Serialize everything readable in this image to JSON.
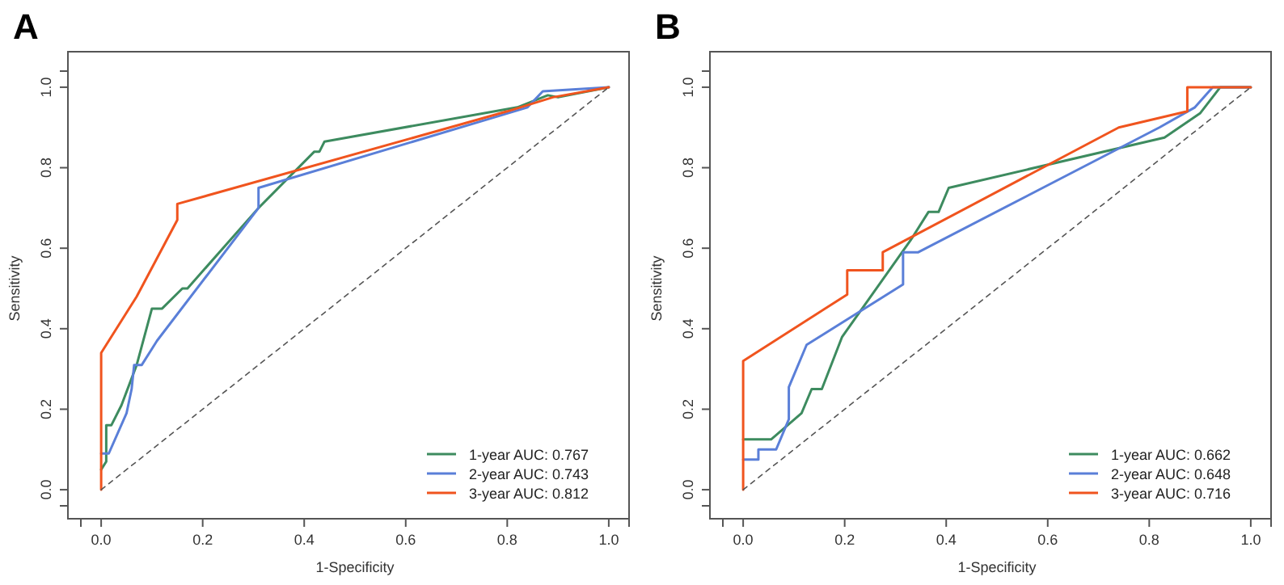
{
  "chart_data": [
    {
      "type": "line",
      "title": "A",
      "xlabel": "1-Specificity",
      "ylabel": "Sensitivity",
      "xlim": [
        -0.04,
        1.04
      ],
      "ylim": [
        -0.04,
        1.04
      ],
      "xticks": [
        {
          "value": 0,
          "label": "0.0"
        },
        {
          "value": 0.2,
          "label": "0.2"
        },
        {
          "value": 0.4,
          "label": "0.4"
        },
        {
          "value": 0.6,
          "label": "0.6"
        },
        {
          "value": 0.8,
          "label": "0.8"
        },
        {
          "value": 1,
          "label": "1.0"
        }
      ],
      "yticks": [
        {
          "value": 0,
          "label": "0.0"
        },
        {
          "value": 0.2,
          "label": "0.2"
        },
        {
          "value": 0.4,
          "label": "0.4"
        },
        {
          "value": 0.6,
          "label": "0.6"
        },
        {
          "value": 0.8,
          "label": "0.8"
        },
        {
          "value": 1,
          "label": "1.0"
        }
      ],
      "legend": "bottom right",
      "grid": false,
      "marker": "none",
      "series": [
        {
          "name": "1-year AUC: 0.767",
          "color": "#3d8b5f",
          "x": [
            0,
            0.01,
            0.01,
            0.02,
            0.04,
            0.07,
            0.1,
            0.12,
            0.16,
            0.17,
            0.31,
            0.42,
            0.43,
            0.44,
            0.82,
            0.88,
            0.9,
            1
          ],
          "values": [
            0.05,
            0.07,
            0.16,
            0.16,
            0.21,
            0.31,
            0.45,
            0.45,
            0.5,
            0.5,
            0.7,
            0.84,
            0.84,
            0.865,
            0.95,
            0.98,
            0.975,
            1
          ]
        },
        {
          "name": "2-year AUC: 0.743",
          "color": "#5a7fd8",
          "x": [
            0,
            0.015,
            0.05,
            0.06,
            0.065,
            0.08,
            0.1,
            0.11,
            0.31,
            0.31,
            0.84,
            0.87,
            1
          ],
          "values": [
            0.09,
            0.09,
            0.19,
            0.25,
            0.31,
            0.31,
            0.35,
            0.37,
            0.7,
            0.75,
            0.95,
            0.99,
            1
          ]
        },
        {
          "name": "3-year AUC: 0.812",
          "color": "#f0541e",
          "x": [
            0,
            0,
            0.07,
            0.15,
            0.15,
            0.8,
            0.89,
            1
          ],
          "values": [
            0,
            0.34,
            0.48,
            0.67,
            0.71,
            0.94,
            0.975,
            1
          ]
        },
        {
          "color": "#555555",
          "line_style": "dashed",
          "x": [
            0,
            1
          ],
          "values": [
            0,
            1
          ]
        }
      ]
    },
    {
      "type": "line",
      "title": "B",
      "xlabel": "1-Specificity",
      "ylabel": "Sensitivity",
      "xlim": [
        -0.04,
        1.04
      ],
      "ylim": [
        -0.04,
        1.04
      ],
      "xticks": [
        {
          "value": 0,
          "label": "0.0"
        },
        {
          "value": 0.2,
          "label": "0.2"
        },
        {
          "value": 0.4,
          "label": "0.4"
        },
        {
          "value": 0.6,
          "label": "0.6"
        },
        {
          "value": 0.8,
          "label": "0.8"
        },
        {
          "value": 1,
          "label": "1.0"
        }
      ],
      "yticks": [
        {
          "value": 0,
          "label": "0.0"
        },
        {
          "value": 0.2,
          "label": "0.2"
        },
        {
          "value": 0.4,
          "label": "0.4"
        },
        {
          "value": 0.6,
          "label": "0.6"
        },
        {
          "value": 0.8,
          "label": "0.8"
        },
        {
          "value": 1,
          "label": "1.0"
        }
      ],
      "legend": "bottom right",
      "grid": false,
      "marker": "none",
      "series": [
        {
          "name": "1-year AUC: 0.662",
          "color": "#3d8b5f",
          "x": [
            0,
            0.055,
            0.115,
            0.135,
            0.155,
            0.195,
            0.33,
            0.365,
            0.385,
            0.405,
            0.83,
            0.9,
            0.94,
            1
          ],
          "values": [
            0.125,
            0.125,
            0.19,
            0.25,
            0.25,
            0.38,
            0.62,
            0.69,
            0.69,
            0.75,
            0.875,
            0.935,
            1,
            1
          ]
        },
        {
          "name": "2-year AUC: 0.648",
          "color": "#5a7fd8",
          "x": [
            0,
            0.03,
            0.03,
            0.065,
            0.09,
            0.09,
            0.125,
            0.315,
            0.315,
            0.345,
            0.82,
            0.89,
            0.925,
            1
          ],
          "values": [
            0.075,
            0.075,
            0.1,
            0.1,
            0.175,
            0.255,
            0.36,
            0.51,
            0.59,
            0.59,
            0.9,
            0.95,
            1,
            1
          ]
        },
        {
          "name": "3-year AUC: 0.716",
          "color": "#f0541e",
          "x": [
            0,
            0,
            0.205,
            0.205,
            0.275,
            0.275,
            0.74,
            0.875,
            0.875,
            1
          ],
          "values": [
            0,
            0.32,
            0.485,
            0.545,
            0.545,
            0.59,
            0.9,
            0.94,
            1,
            1
          ]
        },
        {
          "color": "#555555",
          "line_style": "dashed",
          "x": [
            0,
            1
          ],
          "values": [
            0,
            1
          ]
        }
      ]
    }
  ]
}
